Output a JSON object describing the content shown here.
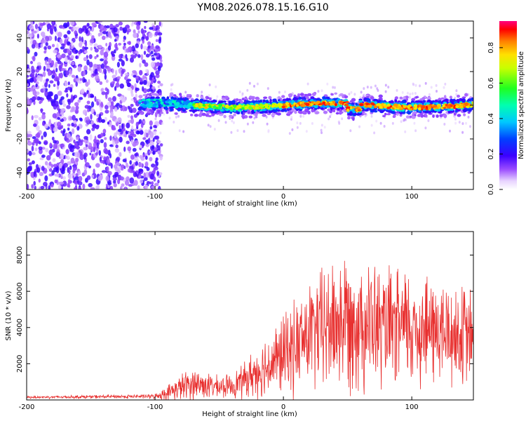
{
  "title": "YM08.2026.078.15.16.G10",
  "chart_data": [
    {
      "type": "heatmap",
      "title": "YM08.2026.078.15.16.G10",
      "xlabel": "Height of straight line (km)",
      "ylabel": "Frequency (Hz)",
      "xlim": [
        -200,
        148
      ],
      "ylim": [
        -50,
        50
      ],
      "xticks": [
        "-200",
        "-100",
        "0",
        "100"
      ],
      "xtick_values": [
        -200,
        -100,
        0,
        100
      ],
      "yticks": [
        "-40",
        "-20",
        "0",
        "20",
        "40"
      ],
      "ytick_values": [
        -40,
        -20,
        0,
        20,
        40
      ],
      "colorbar": {
        "label": "Normalized spectral amplitude",
        "range": [
          0,
          0.95
        ],
        "ticks": [
          "0.0",
          "0.2",
          "0.4",
          "0.6",
          "0.8"
        ],
        "tick_values": [
          0.0,
          0.2,
          0.4,
          0.6,
          0.8
        ]
      },
      "description_points": {
        "noise_region_x": [
          -200,
          -100
        ],
        "signal_band_center_hz": 0,
        "signal_band_halfwidth_hz": 5,
        "peak_amplitude_region_x": [
          -10,
          148
        ]
      }
    },
    {
      "type": "line",
      "xlabel": "Height of straight line (km)",
      "ylabel": "SNR (10 * v/v)",
      "xlim": [
        -200,
        148
      ],
      "ylim": [
        0,
        9300
      ],
      "xticks": [
        "-200",
        "-100",
        "0",
        "100"
      ],
      "xtick_values": [
        -200,
        -100,
        0,
        100
      ],
      "yticks": [
        "2000",
        "4000",
        "6000",
        "8000"
      ],
      "ytick_values": [
        2000,
        4000,
        6000,
        8000
      ],
      "series_color": "#e8302f",
      "envelope": {
        "x": [
          -200,
          -100,
          -90,
          -80,
          -70,
          -60,
          -50,
          -40,
          -30,
          -20,
          -10,
          0,
          10,
          20,
          30,
          40,
          50,
          60,
          70,
          80,
          90,
          100,
          110,
          120,
          130,
          140,
          148
        ],
        "mean": [
          150,
          200,
          400,
          700,
          900,
          800,
          700,
          800,
          1100,
          1600,
          2000,
          2500,
          3000,
          3600,
          3900,
          4200,
          4500,
          4400,
          4100,
          3800,
          3900,
          4000,
          3900,
          3800,
          3600,
          3500,
          3400
        ],
        "spread": [
          80,
          150,
          500,
          900,
          1100,
          900,
          700,
          800,
          1200,
          1800,
          2200,
          2700,
          3100,
          3600,
          4100,
          4600,
          4800,
          4600,
          4200,
          4000,
          3900,
          4100,
          3900,
          3700,
          3600,
          3400,
          3300
        ]
      }
    }
  ]
}
